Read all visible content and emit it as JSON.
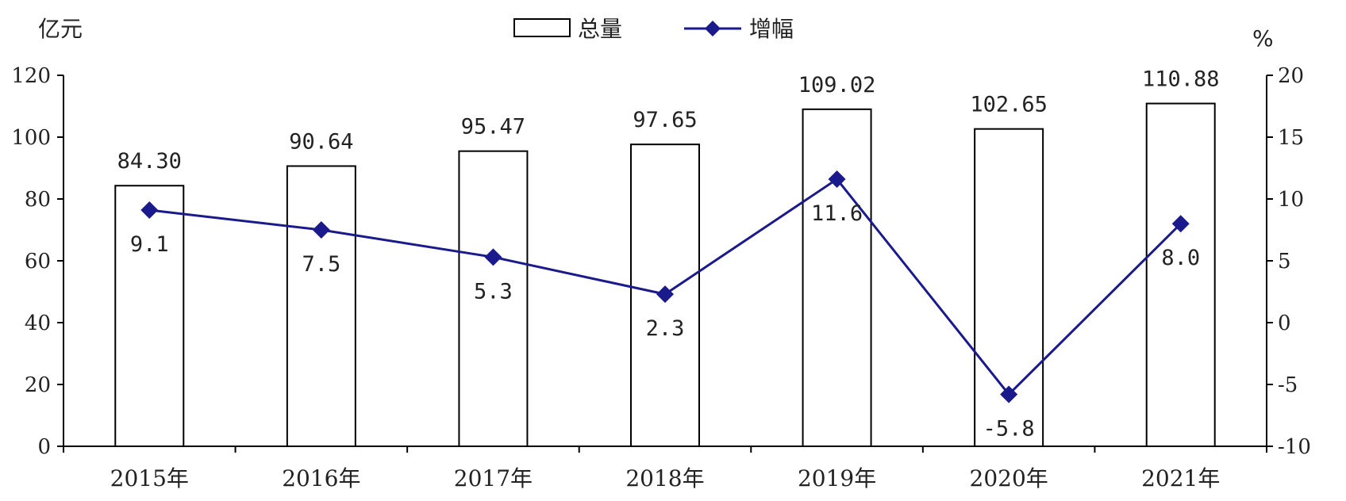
{
  "chart_data": {
    "type": "bar",
    "categories": [
      "2015年",
      "2016年",
      "2017年",
      "2018年",
      "2019年",
      "2020年",
      "2021年"
    ],
    "series": [
      {
        "name": "总量",
        "type": "bar",
        "axis": "left",
        "values": [
          84.3,
          90.64,
          95.47,
          97.65,
          109.02,
          102.65,
          110.88
        ],
        "labels": [
          "84.30",
          "90.64",
          "95.47",
          "97.65",
          "109.02",
          "102.65",
          "110.88"
        ]
      },
      {
        "name": "增幅",
        "type": "line",
        "axis": "right",
        "values": [
          9.1,
          7.5,
          5.3,
          2.3,
          11.6,
          -5.8,
          8.0
        ],
        "labels": [
          "9.1",
          "7.5",
          "5.3",
          "2.3",
          "11.6",
          "-5.8",
          "8.0"
        ],
        "color": "#1a1a8c"
      }
    ],
    "y_left": {
      "unit": "亿元",
      "range": [
        0,
        120
      ],
      "ticks": [
        "0",
        "20",
        "40",
        "60",
        "80",
        "100",
        "120"
      ]
    },
    "y_right": {
      "unit": "%",
      "range": [
        -10,
        20
      ],
      "ticks": [
        "-10",
        "-5",
        "0",
        "5",
        "10",
        "15",
        "20"
      ]
    },
    "legend_position": "top-center",
    "grid": false
  }
}
